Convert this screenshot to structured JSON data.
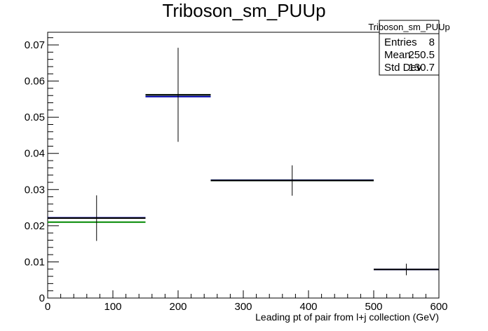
{
  "chart_data": {
    "type": "line",
    "title": "Triboson_sm_PUUp",
    "xlabel": "Leading pt of pair from l+j collection (GeV)",
    "ylabel": "",
    "xlim": [
      0,
      600
    ],
    "ylim": [
      0,
      0.0735
    ],
    "x_ticks": [
      0,
      100,
      200,
      300,
      400,
      500,
      600
    ],
    "x_tick_labels": [
      "0",
      "100",
      "200",
      "300",
      "400",
      "500",
      "600"
    ],
    "y_ticks": [
      0,
      0.01,
      0.02,
      0.03,
      0.04,
      0.05,
      0.06,
      0.07
    ],
    "y_tick_labels": [
      "0",
      "0.01",
      "0.02",
      "0.03",
      "0.04",
      "0.05",
      "0.06",
      "0.07"
    ],
    "grid": false,
    "series": [
      {
        "color": "#000000",
        "bins": [
          {
            "x_low": 0,
            "x_high": 150,
            "x": 75,
            "y": 0.0221,
            "yerr_low": 0.0063,
            "yerr_high": 0.0063
          },
          {
            "x_low": 150,
            "x_high": 250,
            "x": 200,
            "y": 0.0562,
            "yerr_low": 0.013,
            "yerr_high": 0.013
          },
          {
            "x_low": 250,
            "x_high": 500,
            "x": 375,
            "y": 0.0325,
            "yerr_low": 0.0042,
            "yerr_high": 0.0042
          },
          {
            "x_low": 500,
            "x_high": 600,
            "x": 550,
            "y": 0.0079,
            "yerr_low": 0.0016,
            "yerr_high": 0.0016
          }
        ]
      },
      {
        "color": "#0000aa",
        "bins": [
          {
            "x_low": 0,
            "x_high": 150,
            "y": 0.0222
          },
          {
            "x_low": 150,
            "x_high": 250,
            "y": 0.0557
          },
          {
            "x_low": 250,
            "x_high": 500,
            "y": 0.0326
          },
          {
            "x_low": 500,
            "x_high": 600,
            "y": 0.0079
          }
        ]
      },
      {
        "color": "#008800",
        "bins": [
          {
            "x_low": 0,
            "x_high": 150,
            "y": 0.021
          },
          {
            "x_low": 150,
            "x_high": 250,
            "y": 0.0562
          },
          {
            "x_low": 250,
            "x_high": 500,
            "y": 0.0325
          }
        ]
      }
    ],
    "stats_box": {
      "title": "Triboson_sm_PUUp",
      "rows": [
        {
          "label": "Entries",
          "value": "8"
        },
        {
          "label": "Mean",
          "value": "250.5"
        },
        {
          "label": "Std Dev",
          "value": "130.7"
        }
      ]
    }
  }
}
